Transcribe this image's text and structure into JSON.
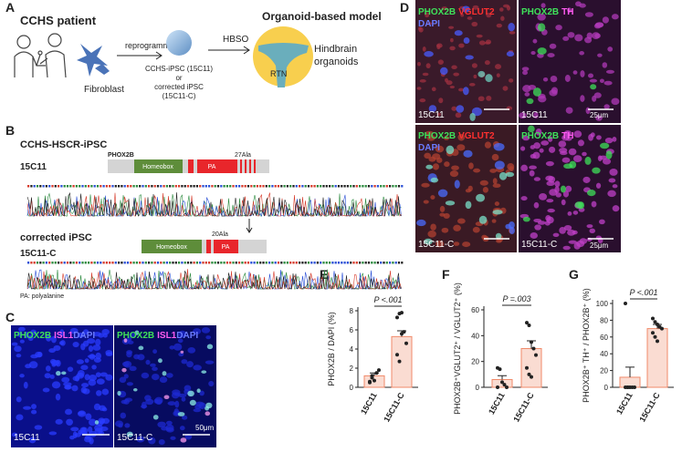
{
  "panel_labels": [
    "A",
    "B",
    "C",
    "D",
    "E",
    "F",
    "G"
  ],
  "panel_a": {
    "patient": "CCHS patient",
    "fibroblast": "Fibroblast",
    "reprogramming": "reprogramming",
    "ipsc": "CCHS-iPSC (15C11)",
    "or": "or",
    "corrected_1": "corrected iPSC",
    "corrected_2": "(15C11-C)",
    "hbso": "HBSO",
    "model": "Organoid-based model",
    "rtn": "RTN",
    "organoids_1": "Hindbrain",
    "organoids_2": "organoids"
  },
  "panel_b": {
    "title": "CCHS-HSCR-iPSC",
    "gene": "PHOX2B",
    "constructs": [
      {
        "header": null,
        "name": "15C11",
        "ala": "27Ala",
        "domain": "Homeobox",
        "pa": "PA"
      },
      {
        "header": "corrected iPSC",
        "name": "15C11-C",
        "ala": "20Ala",
        "domain": "Homeobox",
        "pa": "PA"
      }
    ],
    "footnote": "PA: polyalanine"
  },
  "panel_c": {
    "stains": [
      "PHOX2B",
      "ISL1",
      "DAPI"
    ],
    "images": [
      "15C11",
      "15C11-C"
    ],
    "scale": "50μm"
  },
  "panel_d": {
    "stains_left": [
      "PHOX2B",
      "VGLUT2",
      "DAPI"
    ],
    "stains_right": [
      "PHOX2B",
      "TH"
    ],
    "images": [
      [
        "15C11",
        "15C11"
      ],
      [
        "15C11-C",
        "15C11-C"
      ]
    ],
    "scales": [
      "25μm",
      "25μm"
    ]
  },
  "chart_data": [
    {
      "type": "bar",
      "ylabel": "PHOX2B / DAPI (%)",
      "categories": [
        "15C11",
        "15C11-C"
      ],
      "values": [
        1.2,
        5.3
      ],
      "errors": [
        0.3,
        0.6
      ],
      "points": [
        [
          0.5,
          1.0,
          0.7,
          1.5,
          1.8,
          0.6,
          1.2
        ],
        [
          7.3,
          7.7,
          7.8,
          5.8,
          4.6,
          3.4,
          2.7,
          5.6
        ]
      ],
      "color": "#f08a6a",
      "ylim": [
        0,
        8
      ],
      "yticks": [
        0,
        2,
        4,
        6,
        8
      ],
      "annotation": "P <.001"
    },
    {
      "type": "bar",
      "ylabel": "PHOX2B⁺VGLUT2⁺ / VGLUT2⁺ (%)",
      "categories": [
        "15C11",
        "15C11-C"
      ],
      "values": [
        6,
        30
      ],
      "errors": [
        3,
        6
      ],
      "points": [
        [
          15,
          14,
          4,
          2,
          0,
          0
        ],
        [
          50,
          48,
          35,
          30,
          25,
          15,
          10,
          8
        ]
      ],
      "color": "#f08a6a",
      "ylim": [
        0,
        60
      ],
      "yticks": [
        0,
        20,
        40,
        60
      ],
      "annotation": "P =.003"
    },
    {
      "type": "bar",
      "ylabel": "PHOX2B⁺ TH⁺ / PHOX2B⁺ (%)",
      "categories": [
        "15C11",
        "15C11-C"
      ],
      "values": [
        12,
        70
      ],
      "errors": [
        12,
        5
      ],
      "points": [
        [
          100,
          0,
          0,
          0,
          0,
          0,
          0
        ],
        [
          82,
          78,
          75,
          72,
          70,
          65,
          60,
          55
        ]
      ],
      "color": "#f08a6a",
      "ylim": [
        0,
        100
      ],
      "yticks": [
        0,
        20,
        40,
        60,
        80,
        100
      ],
      "annotation": "P <.001"
    }
  ]
}
